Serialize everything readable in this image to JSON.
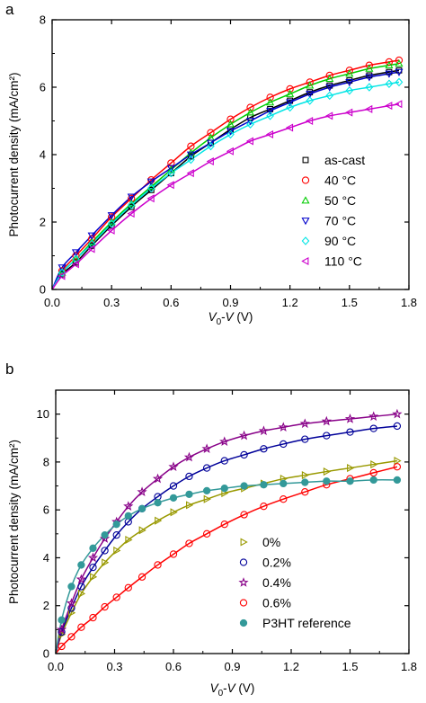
{
  "chart_data": [
    {
      "type": "scatter",
      "panel_label": "a",
      "xlabel": {
        "main": "V",
        "sub": "0",
        "rest": "-V (V)"
      },
      "ylabel": "Photocurrent density (mA/cm²)",
      "xlim": [
        0,
        1.8
      ],
      "ylim": [
        0,
        8
      ],
      "xticks": [
        "0.0",
        "0.3",
        "0.6",
        "0.9",
        "1.2",
        "1.5",
        "1.8"
      ],
      "yticks": [
        "0",
        "2",
        "4",
        "6",
        "8"
      ],
      "legend_position": "center-right",
      "series": [
        {
          "name": "as-cast",
          "color": "#000000",
          "marker": "square",
          "x": [
            0.05,
            0.12,
            0.2,
            0.3,
            0.4,
            0.5,
            0.6,
            0.7,
            0.8,
            0.9,
            1.0,
            1.1,
            1.2,
            1.3,
            1.4,
            1.5,
            1.6,
            1.7,
            1.75
          ],
          "y": [
            0.45,
            0.8,
            1.3,
            1.9,
            2.45,
            2.95,
            3.45,
            3.95,
            4.35,
            4.75,
            5.1,
            5.35,
            5.6,
            5.85,
            6.05,
            6.2,
            6.35,
            6.45,
            6.5
          ]
        },
        {
          "name": "40 °C",
          "color": "#ff0000",
          "marker": "circle",
          "x": [
            0.05,
            0.12,
            0.2,
            0.3,
            0.4,
            0.5,
            0.6,
            0.7,
            0.8,
            0.9,
            1.0,
            1.1,
            1.2,
            1.3,
            1.4,
            1.5,
            1.6,
            1.7,
            1.75
          ],
          "y": [
            0.55,
            1.0,
            1.5,
            2.15,
            2.7,
            3.25,
            3.75,
            4.25,
            4.65,
            5.05,
            5.4,
            5.7,
            5.95,
            6.15,
            6.35,
            6.5,
            6.65,
            6.75,
            6.8
          ]
        },
        {
          "name": "50 °C",
          "color": "#00cc00",
          "marker": "triangle-up",
          "x": [
            0.05,
            0.12,
            0.2,
            0.3,
            0.4,
            0.5,
            0.6,
            0.7,
            0.8,
            0.9,
            1.0,
            1.1,
            1.2,
            1.3,
            1.4,
            1.5,
            1.6,
            1.7,
            1.75
          ],
          "y": [
            0.5,
            0.9,
            1.4,
            2.0,
            2.55,
            3.05,
            3.55,
            4.05,
            4.5,
            4.9,
            5.25,
            5.55,
            5.8,
            6.05,
            6.25,
            6.4,
            6.55,
            6.65,
            6.7
          ]
        },
        {
          "name": "70 °C",
          "color": "#0000cc",
          "marker": "triangle-down",
          "x": [
            0.05,
            0.12,
            0.2,
            0.3,
            0.4,
            0.5,
            0.6,
            0.7,
            0.8,
            0.9,
            1.0,
            1.1,
            1.2,
            1.3,
            1.4,
            1.5,
            1.6,
            1.7,
            1.75
          ],
          "y": [
            0.65,
            1.1,
            1.6,
            2.2,
            2.75,
            3.2,
            3.6,
            4.0,
            4.35,
            4.7,
            5.0,
            5.3,
            5.55,
            5.8,
            6.0,
            6.15,
            6.3,
            6.4,
            6.45
          ]
        },
        {
          "name": "90 °C",
          "color": "#00e5e5",
          "marker": "diamond",
          "x": [
            0.05,
            0.12,
            0.2,
            0.3,
            0.4,
            0.5,
            0.6,
            0.7,
            0.8,
            0.9,
            1.0,
            1.1,
            1.2,
            1.3,
            1.4,
            1.5,
            1.6,
            1.7,
            1.75
          ],
          "y": [
            0.5,
            0.9,
            1.35,
            1.95,
            2.5,
            3.0,
            3.45,
            3.85,
            4.25,
            4.6,
            4.9,
            5.15,
            5.4,
            5.6,
            5.75,
            5.9,
            6.0,
            6.1,
            6.15
          ]
        },
        {
          "name": "110 °C",
          "color": "#cc00cc",
          "marker": "triangle-left",
          "x": [
            0.05,
            0.12,
            0.2,
            0.3,
            0.4,
            0.5,
            0.6,
            0.7,
            0.8,
            0.9,
            1.0,
            1.1,
            1.2,
            1.3,
            1.4,
            1.5,
            1.6,
            1.7,
            1.75
          ],
          "y": [
            0.4,
            0.75,
            1.2,
            1.75,
            2.25,
            2.7,
            3.1,
            3.45,
            3.8,
            4.1,
            4.4,
            4.6,
            4.8,
            5.0,
            5.15,
            5.25,
            5.35,
            5.45,
            5.5
          ]
        }
      ]
    },
    {
      "type": "scatter",
      "panel_label": "b",
      "xlabel": {
        "main": "V",
        "sub": "0",
        "rest": "-V (V)"
      },
      "ylabel": "Photocurrent density (mA/cm²)",
      "xlim": [
        0,
        1.8
      ],
      "ylim": [
        0,
        11
      ],
      "xticks": [
        "0.0",
        "0.3",
        "0.6",
        "0.9",
        "1.2",
        "1.5",
        "1.8"
      ],
      "yticks": [
        "0",
        "2",
        "4",
        "6",
        "8",
        "10"
      ],
      "legend_position": "bottom-right",
      "series": [
        {
          "name": "0%",
          "color": "#999900",
          "marker": "triangle-right",
          "x": [
            0.03,
            0.08,
            0.13,
            0.19,
            0.25,
            0.31,
            0.37,
            0.44,
            0.52,
            0.6,
            0.68,
            0.77,
            0.86,
            0.96,
            1.06,
            1.16,
            1.27,
            1.38,
            1.5,
            1.62,
            1.74
          ],
          "y": [
            0.8,
            1.7,
            2.5,
            3.2,
            3.8,
            4.3,
            4.75,
            5.15,
            5.55,
            5.9,
            6.2,
            6.45,
            6.7,
            6.9,
            7.1,
            7.3,
            7.45,
            7.6,
            7.75,
            7.9,
            8.05
          ]
        },
        {
          "name": "0.2%",
          "color": "#000099",
          "marker": "circle",
          "x": [
            0.03,
            0.08,
            0.13,
            0.19,
            0.25,
            0.31,
            0.37,
            0.44,
            0.52,
            0.6,
            0.68,
            0.77,
            0.86,
            0.96,
            1.06,
            1.16,
            1.27,
            1.38,
            1.5,
            1.62,
            1.74
          ],
          "y": [
            0.9,
            1.9,
            2.8,
            3.6,
            4.3,
            4.95,
            5.5,
            6.05,
            6.55,
            7.0,
            7.4,
            7.75,
            8.05,
            8.3,
            8.55,
            8.75,
            8.95,
            9.1,
            9.25,
            9.4,
            9.5
          ]
        },
        {
          "name": "0.4%",
          "color": "#880088",
          "marker": "star",
          "x": [
            0.03,
            0.08,
            0.13,
            0.19,
            0.25,
            0.31,
            0.37,
            0.44,
            0.52,
            0.6,
            0.68,
            0.77,
            0.86,
            0.96,
            1.06,
            1.16,
            1.27,
            1.38,
            1.5,
            1.62,
            1.74
          ],
          "y": [
            1.0,
            2.1,
            3.1,
            4.0,
            4.8,
            5.5,
            6.15,
            6.75,
            7.3,
            7.8,
            8.2,
            8.55,
            8.85,
            9.1,
            9.3,
            9.45,
            9.6,
            9.7,
            9.8,
            9.9,
            10.0
          ]
        },
        {
          "name": "0.6%",
          "color": "#ff0000",
          "marker": "circle",
          "x": [
            0.03,
            0.08,
            0.13,
            0.19,
            0.25,
            0.31,
            0.37,
            0.44,
            0.52,
            0.6,
            0.68,
            0.77,
            0.86,
            0.96,
            1.06,
            1.16,
            1.27,
            1.38,
            1.5,
            1.62,
            1.74
          ],
          "y": [
            0.3,
            0.7,
            1.1,
            1.5,
            1.95,
            2.35,
            2.75,
            3.2,
            3.7,
            4.15,
            4.6,
            5.0,
            5.4,
            5.8,
            6.15,
            6.45,
            6.75,
            7.05,
            7.3,
            7.55,
            7.8
          ]
        },
        {
          "name": "P3HT reference",
          "color": "#339999",
          "marker": "filled-circle",
          "x": [
            0.03,
            0.08,
            0.13,
            0.19,
            0.25,
            0.31,
            0.37,
            0.44,
            0.52,
            0.6,
            0.68,
            0.77,
            0.86,
            0.96,
            1.06,
            1.16,
            1.27,
            1.38,
            1.5,
            1.62,
            1.74
          ],
          "y": [
            1.4,
            2.8,
            3.7,
            4.4,
            4.95,
            5.4,
            5.75,
            6.05,
            6.3,
            6.5,
            6.65,
            6.8,
            6.9,
            7.0,
            7.05,
            7.1,
            7.15,
            7.2,
            7.2,
            7.25,
            7.25
          ]
        }
      ]
    }
  ]
}
